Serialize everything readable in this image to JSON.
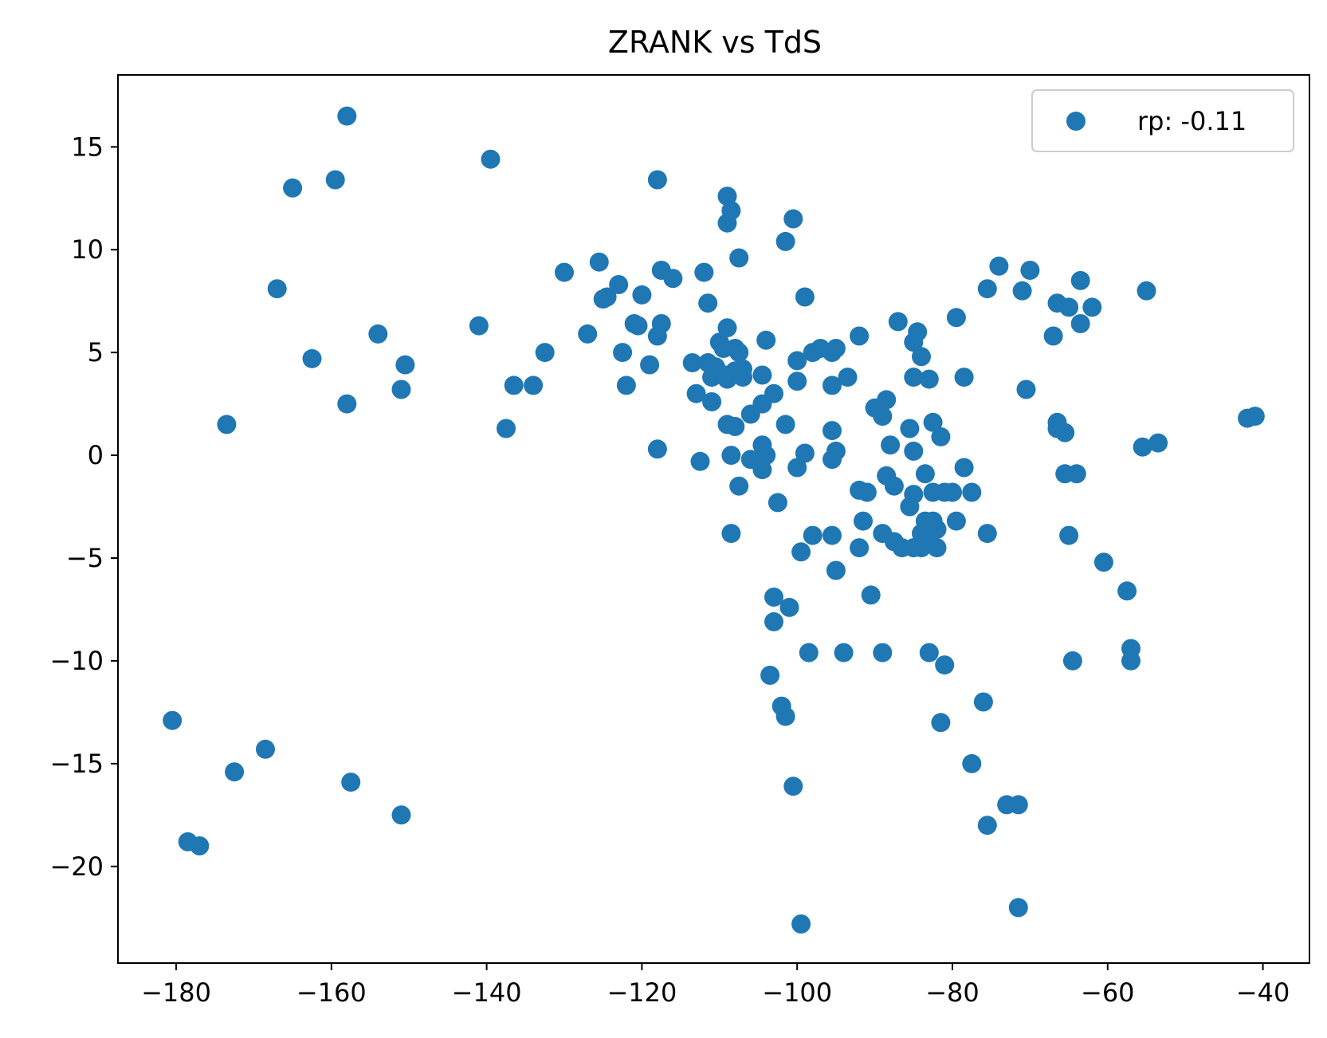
{
  "chart_data": {
    "type": "scatter",
    "title": "ZRANK vs TdS",
    "xlabel": "",
    "ylabel": "",
    "xlim": [
      -187.5,
      -34
    ],
    "ylim": [
      -24.7,
      18.5
    ],
    "xticks": [
      -180,
      -160,
      -140,
      -120,
      -100,
      -80,
      -60,
      -40
    ],
    "yticks": [
      -20,
      -15,
      -10,
      -5,
      0,
      5,
      10,
      15
    ],
    "xtick_labels": [
      "−180",
      "−160",
      "−140",
      "−120",
      "−100",
      "−80",
      "−60",
      "−40"
    ],
    "ytick_labels": [
      "−20",
      "−15",
      "−10",
      "−5",
      "0",
      "5",
      "10",
      "15"
    ],
    "grid": false,
    "legend_position": "top-right",
    "series": [
      {
        "name": "rp: -0.11",
        "color": "#1f77b4",
        "points": [
          [
            -158,
            16.5
          ],
          [
            -139.5,
            14.4
          ],
          [
            -165,
            13
          ],
          [
            -159.5,
            13.4
          ],
          [
            -118,
            13.4
          ],
          [
            -109,
            12.6
          ],
          [
            -108.5,
            11.9
          ],
          [
            -109,
            11.3
          ],
          [
            -100.5,
            11.5
          ],
          [
            -101.5,
            10.4
          ],
          [
            -107.5,
            9.6
          ],
          [
            -167,
            8.1
          ],
          [
            -130,
            8.9
          ],
          [
            -125.5,
            9.4
          ],
          [
            -117.5,
            9
          ],
          [
            -116,
            8.6
          ],
          [
            -112,
            8.9
          ],
          [
            -123,
            8.3
          ],
          [
            -125,
            7.6
          ],
          [
            -124.5,
            7.7
          ],
          [
            -120,
            7.8
          ],
          [
            -111.5,
            7.4
          ],
          [
            -99,
            7.7
          ],
          [
            -74,
            9.2
          ],
          [
            -70,
            9
          ],
          [
            -75.5,
            8.1
          ],
          [
            -71,
            8
          ],
          [
            -63.5,
            8.5
          ],
          [
            -55,
            8
          ],
          [
            -66.5,
            7.4
          ],
          [
            -65,
            7.2
          ],
          [
            -62,
            7.2
          ],
          [
            -63.5,
            6.4
          ],
          [
            -67,
            5.8
          ],
          [
            -162.5,
            4.7
          ],
          [
            -154,
            5.9
          ],
          [
            -151,
            3.2
          ],
          [
            -150.5,
            4.4
          ],
          [
            -158,
            2.5
          ],
          [
            -173.5,
            1.5
          ],
          [
            -141,
            6.3
          ],
          [
            -127,
            5.9
          ],
          [
            -121,
            6.4
          ],
          [
            -120.5,
            6.3
          ],
          [
            -117.5,
            6.4
          ],
          [
            -118,
            5.8
          ],
          [
            -132.5,
            5
          ],
          [
            -122.5,
            5
          ],
          [
            -136.5,
            3.4
          ],
          [
            -134,
            3.4
          ],
          [
            -119,
            4.4
          ],
          [
            -122,
            3.4
          ],
          [
            -137.5,
            1.3
          ],
          [
            -118,
            0.3
          ],
          [
            -113.5,
            4.5
          ],
          [
            -113,
            3
          ],
          [
            -111.5,
            4.5
          ],
          [
            -110.5,
            4.3
          ],
          [
            -111,
            3.8
          ],
          [
            -111,
            2.6
          ],
          [
            -110,
            5.5
          ],
          [
            -109,
            6.2
          ],
          [
            -109.5,
            5.2
          ],
          [
            -108,
            5.2
          ],
          [
            -107.5,
            5
          ],
          [
            -109,
            3.9
          ],
          [
            -108,
            4.1
          ],
          [
            -107,
            3.8
          ],
          [
            -107,
            4.2
          ],
          [
            -110,
            4
          ],
          [
            -109,
            3.7
          ],
          [
            -104,
            5.6
          ],
          [
            -104.5,
            3.9
          ],
          [
            -103,
            3
          ],
          [
            -104.5,
            2.5
          ],
          [
            -106,
            2
          ],
          [
            -109,
            1.5
          ],
          [
            -108,
            1.4
          ],
          [
            -101.5,
            1.5
          ],
          [
            -100,
            4.6
          ],
          [
            -100,
            3.6
          ],
          [
            -98,
            5
          ],
          [
            -97,
            5.2
          ],
          [
            -95.5,
            5
          ],
          [
            -95,
            5.2
          ],
          [
            -95.5,
            3.4
          ],
          [
            -93.5,
            3.8
          ],
          [
            -92,
            5.8
          ],
          [
            -112.5,
            -0.3
          ],
          [
            -108.5,
            0
          ],
          [
            -104.5,
            0.5
          ],
          [
            -104,
            0
          ],
          [
            -106,
            -0.2
          ],
          [
            -104.5,
            -0.7
          ],
          [
            -100,
            -0.6
          ],
          [
            -99,
            0.1
          ],
          [
            -95.5,
            1.2
          ],
          [
            -95.5,
            -0.2
          ],
          [
            -95,
            0.2
          ],
          [
            -107.5,
            -1.5
          ],
          [
            -102.5,
            -2.3
          ],
          [
            -108.5,
            -3.8
          ],
          [
            -98,
            -3.9
          ],
          [
            -99.5,
            -4.7
          ],
          [
            -95.5,
            -3.9
          ],
          [
            -95,
            -5.6
          ],
          [
            -90,
            2.3
          ],
          [
            -89,
            1.9
          ],
          [
            -88.5,
            2.7
          ],
          [
            -88,
            0.5
          ],
          [
            -87,
            6.5
          ],
          [
            -84.5,
            6
          ],
          [
            -85,
            5.5
          ],
          [
            -84,
            4.8
          ],
          [
            -85,
            3.8
          ],
          [
            -83,
            3.7
          ],
          [
            -85.5,
            1.3
          ],
          [
            -82.5,
            1.6
          ],
          [
            -81.5,
            0.9
          ],
          [
            -85,
            0.2
          ],
          [
            -79.5,
            6.7
          ],
          [
            -78.5,
            3.8
          ],
          [
            -70.5,
            3.2
          ],
          [
            -66.5,
            1.6
          ],
          [
            -66.5,
            1.3
          ],
          [
            -65.5,
            1.1
          ],
          [
            -65.5,
            -0.9
          ],
          [
            -64,
            -0.9
          ],
          [
            -92,
            -1.7
          ],
          [
            -91,
            -1.8
          ],
          [
            -88.5,
            -1
          ],
          [
            -87.5,
            -1.5
          ],
          [
            -83.5,
            -0.9
          ],
          [
            -85,
            -1.9
          ],
          [
            -85.5,
            -2.5
          ],
          [
            -82.5,
            -1.8
          ],
          [
            -81,
            -1.8
          ],
          [
            -80,
            -1.8
          ],
          [
            -78.5,
            -0.6
          ],
          [
            -77.5,
            -1.8
          ],
          [
            -91.5,
            -3.2
          ],
          [
            -92,
            -4.5
          ],
          [
            -89,
            -3.8
          ],
          [
            -87.5,
            -4.2
          ],
          [
            -86.5,
            -4.5
          ],
          [
            -85,
            -4.5
          ],
          [
            -84,
            -3.8
          ],
          [
            -83.5,
            -3.2
          ],
          [
            -83,
            -3.8
          ],
          [
            -82.5,
            -3.2
          ],
          [
            -82,
            -3.6
          ],
          [
            -82,
            -4.5
          ],
          [
            -84,
            -4.5
          ],
          [
            -83,
            -4
          ],
          [
            -79.5,
            -3.2
          ],
          [
            -75.5,
            -3.8
          ],
          [
            -90.5,
            -6.8
          ],
          [
            -65,
            -3.9
          ],
          [
            -60.5,
            -5.2
          ],
          [
            -57.5,
            -6.6
          ],
          [
            -103,
            -6.9
          ],
          [
            -101,
            -7.4
          ],
          [
            -103,
            -8.1
          ],
          [
            -98.5,
            -9.6
          ],
          [
            -94,
            -9.6
          ],
          [
            -89,
            -9.6
          ],
          [
            -83,
            -9.6
          ],
          [
            -81,
            -10.2
          ],
          [
            -57,
            -9.4
          ],
          [
            -57,
            -10
          ],
          [
            -64.5,
            -10
          ],
          [
            -103.5,
            -10.7
          ],
          [
            -102,
            -12.2
          ],
          [
            -101.5,
            -12.7
          ],
          [
            -81.5,
            -13
          ],
          [
            -76,
            -12
          ],
          [
            -77.5,
            -15
          ],
          [
            -100.5,
            -16.1
          ],
          [
            -73,
            -17
          ],
          [
            -71.5,
            -17
          ],
          [
            -75.5,
            -18
          ],
          [
            -71.5,
            -22
          ],
          [
            -99.5,
            -22.8
          ],
          [
            -180.5,
            -12.9
          ],
          [
            -168.5,
            -14.3
          ],
          [
            -172.5,
            -15.4
          ],
          [
            -178.5,
            -18.8
          ],
          [
            -177,
            -19
          ],
          [
            -157.5,
            -15.9
          ],
          [
            -151,
            -17.5
          ],
          [
            -42,
            1.8
          ],
          [
            -41,
            1.9
          ],
          [
            -55.5,
            0.4
          ],
          [
            -53.5,
            0.6
          ]
        ]
      }
    ]
  }
}
